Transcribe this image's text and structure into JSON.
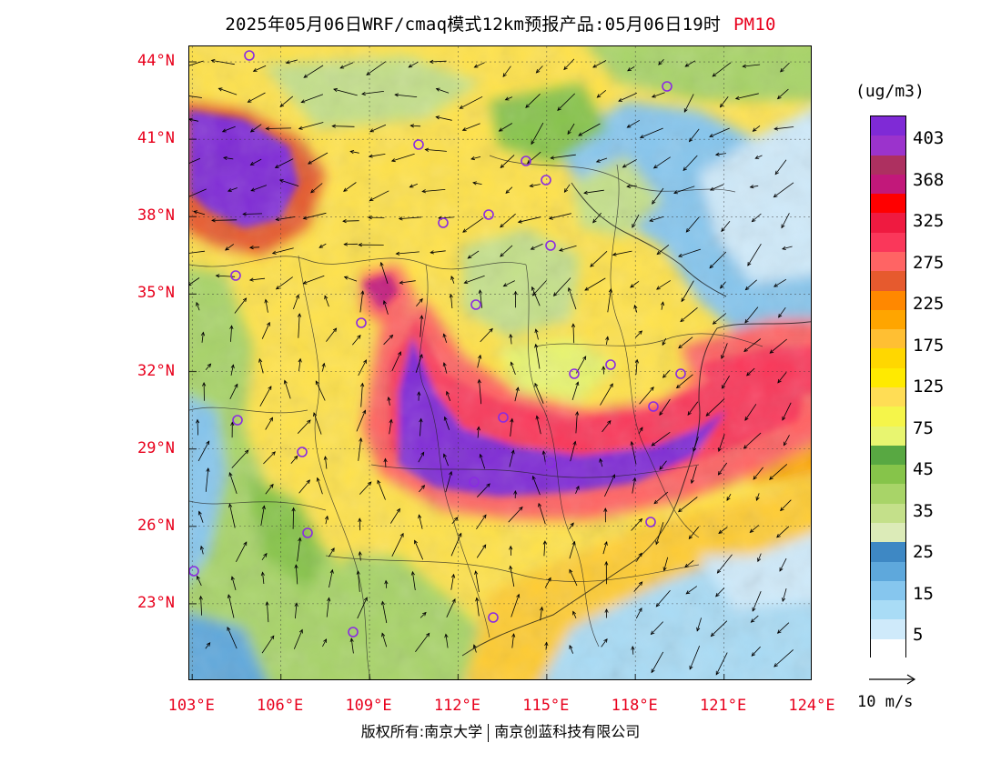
{
  "header": {
    "title": "2025年05月06日WRF/cmaq模式12km预报产品:05月06日19时",
    "pollutant": "PM10",
    "pollutant_color": "#e8001c"
  },
  "axes": {
    "lat_labels": [
      "44°N",
      "41°N",
      "38°N",
      "35°N",
      "32°N",
      "29°N",
      "26°N",
      "23°N"
    ],
    "lat_values": [
      44,
      41,
      38,
      35,
      32,
      29,
      26,
      23
    ],
    "lon_labels": [
      "103°E",
      "106°E",
      "109°E",
      "112°E",
      "115°E",
      "118°E",
      "121°E",
      "124°E"
    ],
    "lon_values": [
      103,
      106,
      109,
      112,
      115,
      118,
      121,
      124
    ],
    "tick_label_color": "#e8001c",
    "lon_range": [
      102.9,
      124.0
    ],
    "lat_range": [
      20.0,
      44.6
    ]
  },
  "legend": {
    "unit": "(ug/m3)",
    "labels": [
      "403",
      "368",
      "325",
      "275",
      "225",
      "175",
      "125",
      "75",
      "45",
      "35",
      "25",
      "15",
      "5"
    ],
    "colors_top_to_bottom": [
      "#7f2ad6",
      "#9b33cc",
      "#ad3060",
      "#c2187a",
      "#ff0000",
      "#ef1a40",
      "#fa375a",
      "#ff6464",
      "#e65a2e",
      "#ff8800",
      "#ffa500",
      "#ffbf33",
      "#ffd700",
      "#ffea00",
      "#ffdd55",
      "#f5f54a",
      "#e8f570",
      "#58a842",
      "#86c44a",
      "#a8d468",
      "#c4e08a",
      "#dcebb8",
      "#3e88c4",
      "#5ea8dc",
      "#86c6ee",
      "#a9dcf6",
      "#cfeafa",
      "#ffffff"
    ]
  },
  "vector_reference": {
    "label": "10 m/s"
  },
  "footer": {
    "copyright_left": "版权所有:南京大学",
    "copyright_right": "南京创蓝科技有限公司"
  },
  "map": {
    "high_pollution_zone": "central-south band and northwest",
    "city_marker_color": "#8a2be2"
  }
}
